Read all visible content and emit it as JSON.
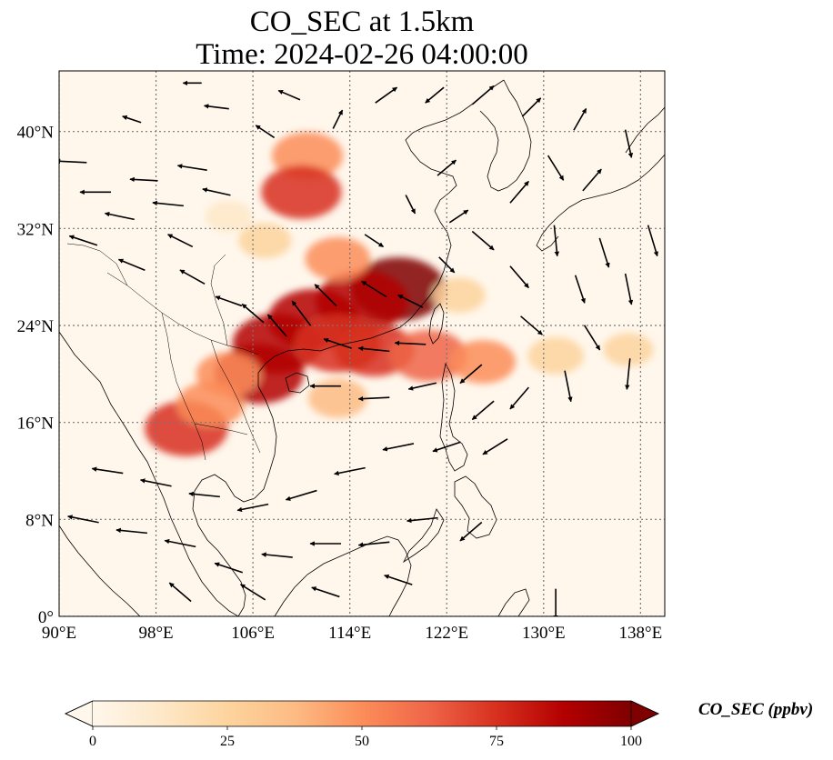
{
  "title": {
    "line1": "CO_SEC at 1.5km",
    "line2": "Time: 2024-02-26 04:00:00"
  },
  "map": {
    "lon_range": [
      90,
      140
    ],
    "lat_range": [
      0,
      45
    ],
    "lon_ticks": [
      {
        "value": 90,
        "label": "90°E"
      },
      {
        "value": 98,
        "label": "98°E"
      },
      {
        "value": 106,
        "label": "106°E"
      },
      {
        "value": 114,
        "label": "114°E"
      },
      {
        "value": 122,
        "label": "122°E"
      },
      {
        "value": 130,
        "label": "130°E"
      },
      {
        "value": 138,
        "label": "138°E"
      }
    ],
    "lat_ticks": [
      {
        "value": 0,
        "label": "0°"
      },
      {
        "value": 8,
        "label": "8°N"
      },
      {
        "value": 16,
        "label": "16°N"
      },
      {
        "value": 24,
        "label": "24°N"
      },
      {
        "value": 32,
        "label": "32°N"
      },
      {
        "value": 40,
        "label": "40°N"
      }
    ],
    "gridlines": "dotted"
  },
  "colorbar": {
    "title": "CO_SEC (ppbv)",
    "ticks": [
      "0",
      "25",
      "50",
      "75",
      "100"
    ],
    "min": 0,
    "max": 100,
    "extend": "both",
    "colormap": "OrRd",
    "colors": [
      "#fff7ec",
      "#fee8c8",
      "#fdd49e",
      "#fdbb84",
      "#fc8d59",
      "#ef6548",
      "#d7301f",
      "#b30000",
      "#7f0000"
    ]
  },
  "field": {
    "variable": "CO_SEC",
    "blobs": [
      {
        "lon": 118.0,
        "lat": 27.0,
        "value": 95
      },
      {
        "lon": 115.0,
        "lat": 26.0,
        "value": 90
      },
      {
        "lon": 111.0,
        "lat": 24.5,
        "value": 88
      },
      {
        "lon": 108.0,
        "lat": 22.5,
        "value": 85
      },
      {
        "lon": 106.5,
        "lat": 20.0,
        "value": 85
      },
      {
        "lon": 113.0,
        "lat": 22.5,
        "value": 80
      },
      {
        "lon": 116.0,
        "lat": 22.0,
        "value": 70
      },
      {
        "lon": 120.5,
        "lat": 21.5,
        "value": 65
      },
      {
        "lon": 125.0,
        "lat": 21.0,
        "value": 45
      },
      {
        "lon": 131.0,
        "lat": 21.5,
        "value": 30
      },
      {
        "lon": 137.0,
        "lat": 22.0,
        "value": 20
      },
      {
        "lon": 100.5,
        "lat": 15.5,
        "value": 75
      },
      {
        "lon": 102.5,
        "lat": 17.5,
        "value": 50
      },
      {
        "lon": 104.0,
        "lat": 20.0,
        "value": 45
      },
      {
        "lon": 110.5,
        "lat": 38.0,
        "value": 55
      },
      {
        "lon": 110.0,
        "lat": 35.0,
        "value": 70
      },
      {
        "lon": 113.0,
        "lat": 29.5,
        "value": 45
      },
      {
        "lon": 107.0,
        "lat": 31.0,
        "value": 25
      },
      {
        "lon": 104.0,
        "lat": 33.0,
        "value": 15
      },
      {
        "lon": 123.0,
        "lat": 26.5,
        "value": 25
      },
      {
        "lon": 113.0,
        "lat": 18.0,
        "value": 35
      }
    ]
  },
  "wind_vectors": [
    {
      "lon": 91,
      "lat": 37.5,
      "u": -1.0,
      "v": 0.05
    },
    {
      "lon": 93,
      "lat": 35,
      "u": -1.0,
      "v": 0.0
    },
    {
      "lon": 95,
      "lat": 33,
      "u": -0.95,
      "v": 0.2
    },
    {
      "lon": 97,
      "lat": 36,
      "u": -0.9,
      "v": 0.05
    },
    {
      "lon": 99,
      "lat": 34,
      "u": -1.0,
      "v": 0.1
    },
    {
      "lon": 101,
      "lat": 37,
      "u": -0.95,
      "v": 0.15
    },
    {
      "lon": 103,
      "lat": 35,
      "u": -0.9,
      "v": 0.2
    },
    {
      "lon": 92,
      "lat": 31,
      "u": -0.9,
      "v": 0.3
    },
    {
      "lon": 96,
      "lat": 29,
      "u": -0.85,
      "v": 0.35
    },
    {
      "lon": 100,
      "lat": 31,
      "u": -0.8,
      "v": 0.4
    },
    {
      "lon": 101,
      "lat": 28,
      "u": -0.8,
      "v": 0.45
    },
    {
      "lon": 104,
      "lat": 26,
      "u": -0.85,
      "v": 0.3
    },
    {
      "lon": 106,
      "lat": 25,
      "u": -0.7,
      "v": 0.6
    },
    {
      "lon": 108,
      "lat": 24,
      "u": -0.6,
      "v": 0.7
    },
    {
      "lon": 110,
      "lat": 25,
      "u": -0.6,
      "v": 0.8
    },
    {
      "lon": 112,
      "lat": 26.5,
      "u": -0.7,
      "v": 0.7
    },
    {
      "lon": 116,
      "lat": 27,
      "u": -0.8,
      "v": 0.5
    },
    {
      "lon": 119,
      "lat": 26,
      "u": -0.8,
      "v": 0.4
    },
    {
      "lon": 113,
      "lat": 22.5,
      "u": -0.9,
      "v": 0.3
    },
    {
      "lon": 116,
      "lat": 22,
      "u": -1.0,
      "v": 0.1
    },
    {
      "lon": 119,
      "lat": 22.5,
      "u": -1.0,
      "v": 0.05
    },
    {
      "lon": 112,
      "lat": 19,
      "u": -1.0,
      "v": 0.0
    },
    {
      "lon": 116,
      "lat": 18,
      "u": -1.0,
      "v": -0.05
    },
    {
      "lon": 120,
      "lat": 19,
      "u": -0.9,
      "v": -0.2
    },
    {
      "lon": 124,
      "lat": 20,
      "u": -0.7,
      "v": -0.6
    },
    {
      "lon": 125,
      "lat": 17,
      "u": -0.7,
      "v": -0.6
    },
    {
      "lon": 128,
      "lat": 18,
      "u": -0.6,
      "v": -0.7
    },
    {
      "lon": 122,
      "lat": 14,
      "u": -0.9,
      "v": -0.3
    },
    {
      "lon": 126,
      "lat": 14,
      "u": -0.8,
      "v": -0.5
    },
    {
      "lon": 118,
      "lat": 14,
      "u": -1.0,
      "v": -0.2
    },
    {
      "lon": 114,
      "lat": 12,
      "u": -1.0,
      "v": -0.2
    },
    {
      "lon": 110,
      "lat": 10,
      "u": -1.0,
      "v": -0.3
    },
    {
      "lon": 106,
      "lat": 9,
      "u": -1.0,
      "v": -0.2
    },
    {
      "lon": 102,
      "lat": 10,
      "u": -1.0,
      "v": 0.1
    },
    {
      "lon": 98,
      "lat": 11,
      "u": -1.0,
      "v": 0.2
    },
    {
      "lon": 94,
      "lat": 12,
      "u": -1.0,
      "v": 0.15
    },
    {
      "lon": 92,
      "lat": 8,
      "u": -1.0,
      "v": 0.2
    },
    {
      "lon": 96,
      "lat": 7,
      "u": -1.0,
      "v": 0.1
    },
    {
      "lon": 100,
      "lat": 6,
      "u": -1.0,
      "v": 0.2
    },
    {
      "lon": 104,
      "lat": 4,
      "u": -0.9,
      "v": 0.3
    },
    {
      "lon": 108,
      "lat": 5,
      "u": -1.0,
      "v": 0.1
    },
    {
      "lon": 112,
      "lat": 6,
      "u": -1.0,
      "v": 0.0
    },
    {
      "lon": 116,
      "lat": 6,
      "u": -1.0,
      "v": -0.1
    },
    {
      "lon": 120,
      "lat": 8,
      "u": -1.0,
      "v": -0.1
    },
    {
      "lon": 112,
      "lat": 2,
      "u": -0.9,
      "v": 0.3
    },
    {
      "lon": 106,
      "lat": 2,
      "u": -0.8,
      "v": 0.5
    },
    {
      "lon": 100,
      "lat": 2,
      "u": -0.7,
      "v": 0.6
    },
    {
      "lon": 118,
      "lat": 3,
      "u": -0.9,
      "v": 0.3
    },
    {
      "lon": 124,
      "lat": 7,
      "u": -0.7,
      "v": -0.6
    },
    {
      "lon": 131,
      "lat": 1,
      "u": 0.0,
      "v": -1.0
    },
    {
      "lon": 131,
      "lat": 31,
      "u": 0.1,
      "v": -1.0
    },
    {
      "lon": 133,
      "lat": 27,
      "u": 0.3,
      "v": -0.9
    },
    {
      "lon": 135,
      "lat": 30,
      "u": 0.3,
      "v": -0.95
    },
    {
      "lon": 137,
      "lat": 27,
      "u": 0.2,
      "v": -1.0
    },
    {
      "lon": 139,
      "lat": 31,
      "u": 0.3,
      "v": -1.0
    },
    {
      "lon": 134,
      "lat": 23,
      "u": 0.5,
      "v": -0.8
    },
    {
      "lon": 137,
      "lat": 20,
      "u": -0.1,
      "v": -1.0
    },
    {
      "lon": 132,
      "lat": 19,
      "u": 0.2,
      "v": -1.0
    },
    {
      "lon": 129,
      "lat": 24,
      "u": 0.7,
      "v": -0.6
    },
    {
      "lon": 128,
      "lat": 28,
      "u": 0.6,
      "v": -0.7
    },
    {
      "lon": 125,
      "lat": 31,
      "u": 0.7,
      "v": -0.6
    },
    {
      "lon": 128,
      "lat": 35,
      "u": 0.6,
      "v": 0.7
    },
    {
      "lon": 131,
      "lat": 37,
      "u": 0.5,
      "v": -0.8
    },
    {
      "lon": 134,
      "lat": 36,
      "u": 0.6,
      "v": 0.7
    },
    {
      "lon": 137,
      "lat": 39,
      "u": 0.2,
      "v": -0.9
    },
    {
      "lon": 133,
      "lat": 41,
      "u": 0.4,
      "v": 0.7
    },
    {
      "lon": 129,
      "lat": 42,
      "u": 0.6,
      "v": 0.6
    },
    {
      "lon": 125,
      "lat": 43,
      "u": 0.7,
      "v": 0.6
    },
    {
      "lon": 121,
      "lat": 43,
      "u": -0.6,
      "v": -0.5
    },
    {
      "lon": 117,
      "lat": 43,
      "u": 0.7,
      "v": 0.5
    },
    {
      "lon": 113,
      "lat": 41,
      "u": 0.3,
      "v": 0.6
    },
    {
      "lon": 109,
      "lat": 43,
      "u": -0.7,
      "v": 0.3
    },
    {
      "lon": 107,
      "lat": 40,
      "u": -0.6,
      "v": 0.4
    },
    {
      "lon": 103,
      "lat": 42,
      "u": -0.8,
      "v": 0.1
    },
    {
      "lon": 96,
      "lat": 41,
      "u": -0.6,
      "v": 0.2
    },
    {
      "lon": 101,
      "lat": 44,
      "u": -0.6,
      "v": 0.0
    },
    {
      "lon": 122,
      "lat": 37,
      "u": 0.6,
      "v": 0.5
    },
    {
      "lon": 119,
      "lat": 34,
      "u": 0.3,
      "v": -0.6
    },
    {
      "lon": 123,
      "lat": 33,
      "u": 0.6,
      "v": 0.4
    },
    {
      "lon": 116,
      "lat": 31,
      "u": 0.6,
      "v": -0.4
    },
    {
      "lon": 122,
      "lat": 29,
      "u": 0.5,
      "v": -0.5
    }
  ]
}
